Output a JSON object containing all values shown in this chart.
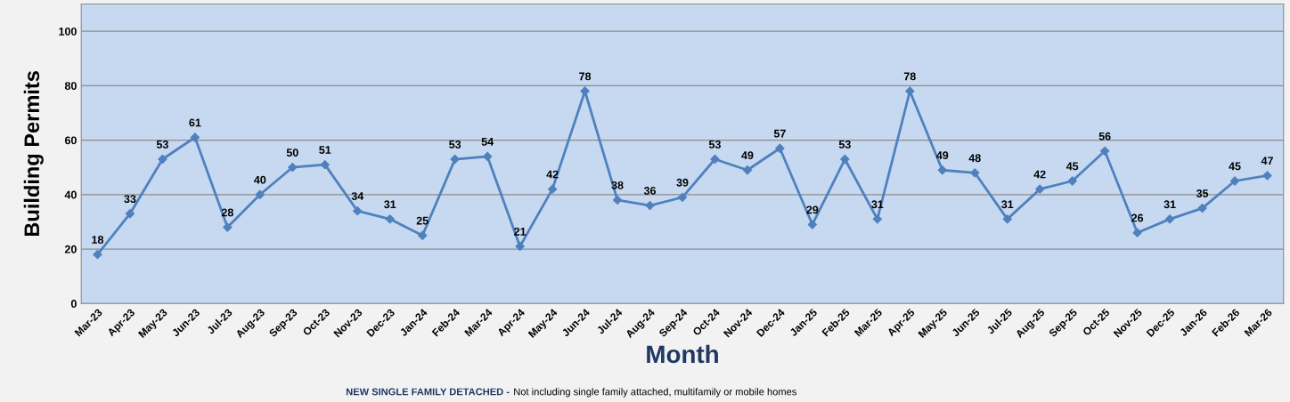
{
  "chart_data": {
    "type": "line",
    "xlabel": "Month",
    "ylabel": "Building Permits",
    "categories": [
      "Mar-23",
      "Apr-23",
      "May-23",
      "Jun-23",
      "Jul-23",
      "Aug-23",
      "Sep-23",
      "Oct-23",
      "Nov-23",
      "Dec-23",
      "Jan-24",
      "Feb-24",
      "Mar-24",
      "Apr-24",
      "May-24",
      "Jun-24",
      "Jul-24",
      "Aug-24",
      "Sep-24",
      "Oct-24",
      "Nov-24",
      "Dec-24",
      "Jan-25",
      "Feb-25",
      "Mar-25",
      "Apr-25",
      "May-25",
      "Jun-25",
      "Jul-25",
      "Aug-25",
      "Sep-25",
      "Oct-25",
      "Nov-25",
      "Dec-25",
      "Jan-26",
      "Feb-26",
      "Mar-26"
    ],
    "series": [
      {
        "color": "#4f81bd",
        "values": [
          18,
          33,
          53,
          61,
          28,
          40,
          50,
          51,
          34,
          31,
          25,
          53,
          54,
          21,
          42,
          78,
          38,
          36,
          39,
          53,
          49,
          57,
          29,
          53,
          31,
          78,
          49,
          48,
          31,
          42,
          45,
          56,
          26,
          31,
          35,
          45,
          47
        ]
      }
    ],
    "ylim": [
      0,
      110
    ],
    "yticks": [
      0,
      20,
      40,
      60,
      80,
      100
    ],
    "grid": "y",
    "marker": "diamond",
    "line_style": "solid",
    "data_labels": true,
    "legend": false,
    "annotations": [
      "NEW SINGLE FAMILY DETACHED -",
      "Not including single family attached, multifamily or mobile homes"
    ]
  }
}
